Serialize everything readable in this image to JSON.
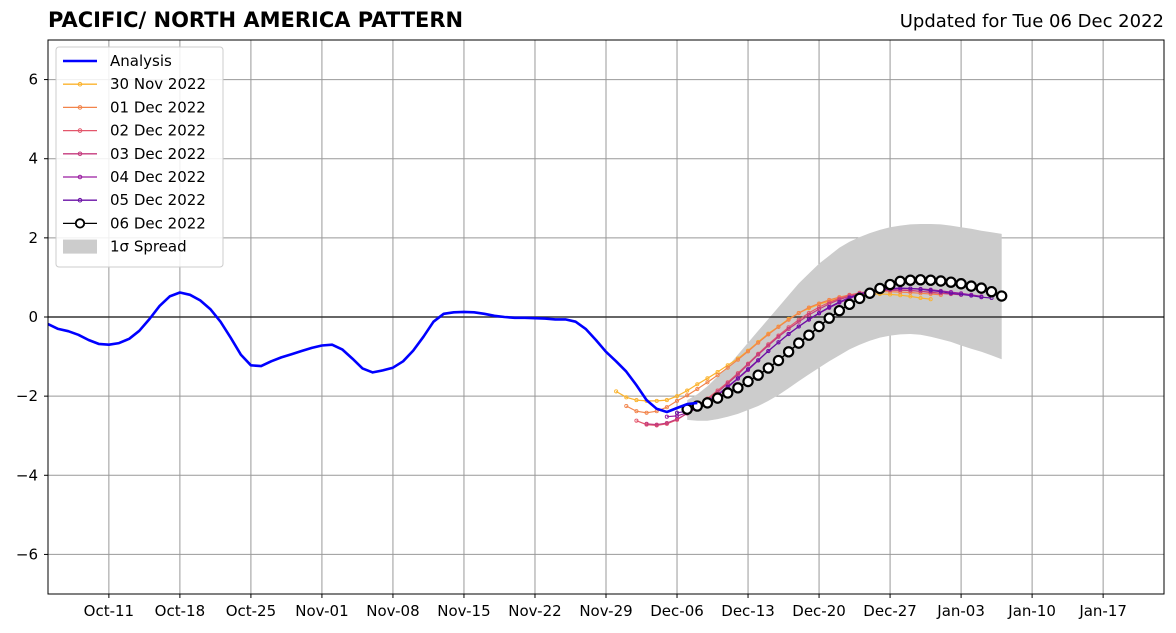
{
  "title": "PACIFIC/ NORTH AMERICA PATTERN",
  "updated": "Updated for Tue 06 Dec 2022",
  "chart_data": {
    "type": "line",
    "xlim": [
      "2022-10-05",
      "2023-01-23"
    ],
    "ylim": [
      -7,
      7
    ],
    "x_ticks": [
      {
        "date": "2022-10-11",
        "label": "Oct-11"
      },
      {
        "date": "2022-10-18",
        "label": "Oct-18"
      },
      {
        "date": "2022-10-25",
        "label": "Oct-25"
      },
      {
        "date": "2022-11-01",
        "label": "Nov-01"
      },
      {
        "date": "2022-11-08",
        "label": "Nov-08"
      },
      {
        "date": "2022-11-15",
        "label": "Nov-15"
      },
      {
        "date": "2022-11-22",
        "label": "Nov-22"
      },
      {
        "date": "2022-11-29",
        "label": "Nov-29"
      },
      {
        "date": "2022-12-06",
        "label": "Dec-06"
      },
      {
        "date": "2022-12-13",
        "label": "Dec-13"
      },
      {
        "date": "2022-12-20",
        "label": "Dec-20"
      },
      {
        "date": "2022-12-27",
        "label": "Dec-27"
      },
      {
        "date": "2023-01-03",
        "label": "Jan-03"
      },
      {
        "date": "2023-01-10",
        "label": "Jan-10"
      },
      {
        "date": "2023-01-17",
        "label": "Jan-17"
      }
    ],
    "y_ticks": [
      {
        "value": -6,
        "label": "−6"
      },
      {
        "value": -4,
        "label": "−4"
      },
      {
        "value": -2,
        "label": "−2"
      },
      {
        "value": 0,
        "label": "0"
      },
      {
        "value": 2,
        "label": "2"
      },
      {
        "value": 4,
        "label": "4"
      },
      {
        "value": 6,
        "label": "6"
      }
    ],
    "grid": true,
    "legend_position": "top-left",
    "legend_spread_label": "1σ Spread",
    "spread_color": "#cccccc",
    "analysis": {
      "name": "Analysis",
      "color": "#0000ff",
      "start": "2022-10-05",
      "values": [
        -0.18,
        -0.3,
        -0.36,
        -0.45,
        -0.58,
        -0.68,
        -0.7,
        -0.66,
        -0.55,
        -0.35,
        -0.05,
        0.28,
        0.52,
        0.62,
        0.56,
        0.42,
        0.2,
        -0.12,
        -0.52,
        -0.95,
        -1.22,
        -1.24,
        -1.12,
        -1.02,
        -0.94,
        -0.86,
        -0.78,
        -0.72,
        -0.7,
        -0.82,
        -1.05,
        -1.3,
        -1.4,
        -1.35,
        -1.28,
        -1.12,
        -0.85,
        -0.5,
        -0.12,
        0.08,
        0.12,
        0.13,
        0.12,
        0.08,
        0.03,
        0.0,
        -0.02,
        -0.02,
        -0.03,
        -0.04,
        -0.06,
        -0.06,
        -0.12,
        -0.3,
        -0.58,
        -0.88,
        -1.12,
        -1.38,
        -1.72,
        -2.1,
        -2.32,
        -2.4,
        -2.3,
        -2.2,
        -2.17
      ]
    },
    "series": [
      {
        "name": "30 Nov 2022",
        "color": "#fbb32d",
        "start": "2022-11-30",
        "values": [
          -1.88,
          -2.03,
          -2.1,
          -2.12,
          -2.12,
          -2.1,
          -2.0,
          -1.86,
          -1.7,
          -1.55,
          -1.39,
          -1.22,
          -1.05,
          -0.85,
          -0.63,
          -0.42,
          -0.24,
          -0.05,
          0.1,
          0.22,
          0.32,
          0.4,
          0.47,
          0.52,
          0.56,
          0.58,
          0.58,
          0.57,
          0.55,
          0.52,
          0.48,
          0.45
        ]
      },
      {
        "name": "01 Dec 2022",
        "color": "#f2844b",
        "start": "2022-12-01",
        "values": [
          -2.25,
          -2.38,
          -2.42,
          -2.38,
          -2.28,
          -2.12,
          -1.98,
          -1.82,
          -1.65,
          -1.47,
          -1.28,
          -1.08,
          -0.87,
          -0.65,
          -0.44,
          -0.25,
          -0.07,
          0.1,
          0.24,
          0.34,
          0.43,
          0.5,
          0.56,
          0.6,
          0.62,
          0.64,
          0.64,
          0.63,
          0.62,
          0.6,
          0.58,
          0.56
        ]
      },
      {
        "name": "02 Dec 2022",
        "color": "#e3566b",
        "start": "2022-12-02",
        "values": [
          -2.62,
          -2.72,
          -2.74,
          -2.7,
          -2.6,
          -2.43,
          -2.25,
          -2.06,
          -1.86,
          -1.65,
          -1.42,
          -1.18,
          -0.93,
          -0.69,
          -0.47,
          -0.26,
          -0.07,
          0.1,
          0.25,
          0.37,
          0.47,
          0.55,
          0.61,
          0.65,
          0.67,
          0.68,
          0.68,
          0.67,
          0.65,
          0.63,
          0.6,
          0.58
        ]
      },
      {
        "name": "03 Dec 2022",
        "color": "#c43a7d",
        "start": "2022-12-03",
        "values": [
          -2.7,
          -2.72,
          -2.68,
          -2.58,
          -2.44,
          -2.28,
          -2.1,
          -1.9,
          -1.68,
          -1.45,
          -1.2,
          -0.95,
          -0.72,
          -0.5,
          -0.3,
          -0.12,
          0.05,
          0.2,
          0.33,
          0.44,
          0.52,
          0.58,
          0.63,
          0.66,
          0.68,
          0.68,
          0.67,
          0.65,
          0.62,
          0.6,
          0.58,
          0.56
        ]
      },
      {
        "name": "04 Dec 2022",
        "color": "#9a1ca1",
        "start": "2022-12-05",
        "values": [
          -2.52,
          -2.5,
          -2.42,
          -2.3,
          -2.15,
          -1.98,
          -1.78,
          -1.56,
          -1.34,
          -1.1,
          -0.86,
          -0.64,
          -0.43,
          -0.24,
          -0.07,
          0.09,
          0.23,
          0.36,
          0.47,
          0.56,
          0.63,
          0.68,
          0.71,
          0.72,
          0.72,
          0.71,
          0.69,
          0.66,
          0.63,
          0.6,
          0.56,
          0.52
        ]
      },
      {
        "name": "05 Dec 2022",
        "color": "#6a10a6",
        "start": "2022-12-06",
        "values": [
          -2.42,
          -2.38,
          -2.28,
          -2.13,
          -1.96,
          -1.76,
          -1.55,
          -1.32,
          -1.09,
          -0.86,
          -0.64,
          -0.43,
          -0.24,
          -0.06,
          0.1,
          0.25,
          0.38,
          0.49,
          0.58,
          0.65,
          0.7,
          0.72,
          0.73,
          0.72,
          0.7,
          0.67,
          0.64,
          0.6,
          0.57,
          0.54,
          0.5,
          0.48
        ]
      },
      {
        "name": "06 Dec 2022",
        "color": "#000000",
        "start": "2022-12-07",
        "values": [
          -2.33,
          -2.25,
          -2.17,
          -2.05,
          -1.92,
          -1.79,
          -1.63,
          -1.47,
          -1.29,
          -1.1,
          -0.88,
          -0.66,
          -0.46,
          -0.24,
          -0.03,
          0.16,
          0.32,
          0.47,
          0.6,
          0.72,
          0.82,
          0.9,
          0.93,
          0.94,
          0.93,
          0.91,
          0.88,
          0.84,
          0.78,
          0.73,
          0.64,
          0.53
        ]
      }
    ],
    "spread": {
      "start": "2022-12-07",
      "upper": [
        -2.1,
        -1.95,
        -1.75,
        -1.5,
        -1.25,
        -0.95,
        -0.65,
        -0.35,
        -0.05,
        0.25,
        0.55,
        0.85,
        1.1,
        1.35,
        1.55,
        1.75,
        1.9,
        2.02,
        2.12,
        2.2,
        2.27,
        2.31,
        2.34,
        2.35,
        2.35,
        2.34,
        2.31,
        2.27,
        2.23,
        2.18,
        2.14,
        2.1
      ],
      "lower": [
        -2.6,
        -2.62,
        -2.62,
        -2.58,
        -2.52,
        -2.45,
        -2.35,
        -2.25,
        -2.12,
        -1.97,
        -1.8,
        -1.62,
        -1.45,
        -1.28,
        -1.12,
        -0.97,
        -0.82,
        -0.7,
        -0.6,
        -0.52,
        -0.47,
        -0.44,
        -0.43,
        -0.45,
        -0.5,
        -0.56,
        -0.63,
        -0.72,
        -0.8,
        -0.88,
        -0.97,
        -1.07
      ]
    }
  }
}
